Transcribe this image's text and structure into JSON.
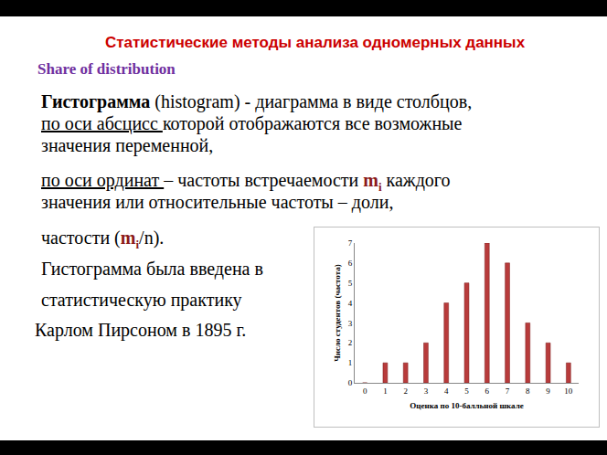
{
  "slide": {
    "title": "Статистические методы анализа одномерных данных",
    "subtitle": "Share of distribution",
    "lines": [
      [
        {
          "b": "Гистограмма"
        },
        " (histogram)  - диаграмма в виде столбцов,"
      ],
      [
        {
          "u": "по оси абсцисс "
        },
        "которой отображаются все возможные"
      ],
      [
        "значения переменной,"
      ],
      [
        {
          "u": "по оси ординат "
        },
        "– частоты встречаемости ",
        {
          "m": "m",
          "sub": "i"
        },
        " каждого"
      ],
      [
        "значения или относительные частоты – доли,"
      ],
      [
        "частости (",
        {
          "m": "m",
          "sub": "i"
        },
        "/n)."
      ],
      [
        "Гистограмма была введена в"
      ],
      [
        "статистическую практику"
      ],
      [
        "Карлом Пирсоном в 1895 г."
      ]
    ]
  },
  "chart_data": {
    "type": "bar",
    "x_label": "Оценка по 10-балльной шкале",
    "y_label": "Число студентов (частота)",
    "categories": [
      "0",
      "1",
      "2",
      "3",
      "4",
      "5",
      "6",
      "7",
      "8",
      "9",
      "10"
    ],
    "values": [
      0,
      1,
      1,
      2,
      4,
      5,
      7,
      6,
      3,
      2,
      1
    ],
    "color": "#b83b3b",
    "ylim": [
      0,
      7
    ],
    "yticks": [
      0,
      1,
      2,
      3,
      4,
      5,
      6,
      7
    ],
    "grid": false
  }
}
